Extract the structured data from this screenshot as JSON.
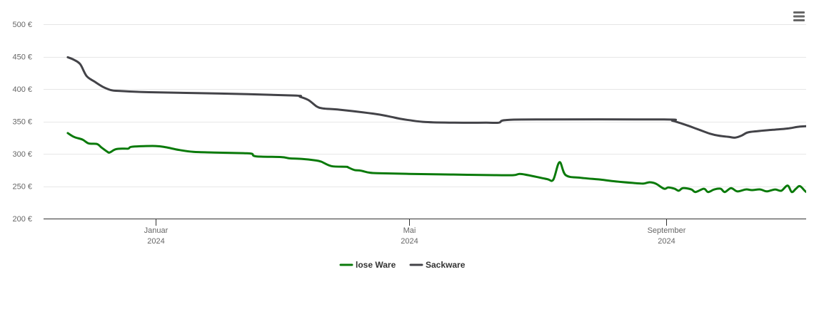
{
  "chart_data": {
    "type": "line",
    "title": "",
    "xlabel": "",
    "ylabel": "",
    "ylim": [
      200,
      500
    ],
    "xlim": [
      "2023-11-20",
      "2024-11-15"
    ],
    "y_ticks": [
      {
        "value": 500,
        "label": "500 €"
      },
      {
        "value": 450,
        "label": "450 €"
      },
      {
        "value": 400,
        "label": "400 €"
      },
      {
        "value": 350,
        "label": "350 €"
      },
      {
        "value": 300,
        "label": "300 €"
      },
      {
        "value": 250,
        "label": "250 €"
      },
      {
        "value": 200,
        "label": "200 €"
      }
    ],
    "x_ticks": [
      {
        "date": "2024-01-01",
        "label": "Januar",
        "sublabel": "2024"
      },
      {
        "date": "2024-05-01",
        "label": "Mai",
        "sublabel": "2024"
      },
      {
        "date": "2024-09-01",
        "label": "September",
        "sublabel": "2024"
      }
    ],
    "grid": true,
    "legend_position": "bottom-center",
    "series": [
      {
        "name": "lose Ware",
        "color": "#0a7a0a",
        "points": [
          [
            "2023-11-20",
            332
          ],
          [
            "2023-11-23",
            326
          ],
          [
            "2023-11-27",
            322
          ],
          [
            "2023-11-30",
            316
          ],
          [
            "2023-12-04",
            315
          ],
          [
            "2023-12-06",
            310
          ],
          [
            "2023-12-09",
            303
          ],
          [
            "2023-12-10",
            302
          ],
          [
            "2023-12-13",
            307
          ],
          [
            "2023-12-17",
            308
          ],
          [
            "2023-12-19",
            308
          ],
          [
            "2023-12-21",
            311
          ],
          [
            "2024-01-01",
            312
          ],
          [
            "2024-01-06",
            310
          ],
          [
            "2024-01-12",
            306
          ],
          [
            "2024-01-19",
            303
          ],
          [
            "2024-01-29",
            302
          ],
          [
            "2024-02-12",
            301
          ],
          [
            "2024-02-16",
            300
          ],
          [
            "2024-02-18",
            296
          ],
          [
            "2024-03-01",
            295
          ],
          [
            "2024-03-05",
            293
          ],
          [
            "2024-03-11",
            292
          ],
          [
            "2024-03-17",
            290
          ],
          [
            "2024-03-20",
            288
          ],
          [
            "2024-03-25",
            281
          ],
          [
            "2024-04-01",
            280
          ],
          [
            "2024-04-02",
            279
          ],
          [
            "2024-04-05",
            275
          ],
          [
            "2024-04-08",
            274
          ],
          [
            "2024-04-12",
            271
          ],
          [
            "2024-04-16",
            270
          ],
          [
            "2024-05-01",
            269
          ],
          [
            "2024-05-21",
            268
          ],
          [
            "2024-06-11",
            267
          ],
          [
            "2024-06-20",
            267
          ],
          [
            "2024-06-23",
            269
          ],
          [
            "2024-06-27",
            267
          ],
          [
            "2024-07-06",
            261
          ],
          [
            "2024-07-09",
            260
          ],
          [
            "2024-07-12",
            287
          ],
          [
            "2024-07-15",
            267
          ],
          [
            "2024-07-22",
            263
          ],
          [
            "2024-08-01",
            260
          ],
          [
            "2024-08-06",
            258
          ],
          [
            "2024-08-16",
            255
          ],
          [
            "2024-08-21",
            254
          ],
          [
            "2024-08-24",
            256
          ],
          [
            "2024-08-27",
            254
          ],
          [
            "2024-08-31",
            246
          ],
          [
            "2024-09-02",
            248
          ],
          [
            "2024-09-05",
            246
          ],
          [
            "2024-09-07",
            243
          ],
          [
            "2024-09-09",
            247
          ],
          [
            "2024-09-13",
            245
          ],
          [
            "2024-09-15",
            241
          ],
          [
            "2024-09-19",
            246
          ],
          [
            "2024-09-21",
            241
          ],
          [
            "2024-09-24",
            245
          ],
          [
            "2024-09-27",
            246
          ],
          [
            "2024-09-29",
            241
          ],
          [
            "2024-10-02",
            247
          ],
          [
            "2024-10-05",
            242
          ],
          [
            "2024-10-09",
            245
          ],
          [
            "2024-10-12",
            244
          ],
          [
            "2024-10-16",
            245
          ],
          [
            "2024-10-19",
            242
          ],
          [
            "2024-10-23",
            245
          ],
          [
            "2024-10-26",
            243
          ],
          [
            "2024-10-29",
            251
          ],
          [
            "2024-10-31",
            241
          ],
          [
            "2024-11-02",
            246
          ],
          [
            "2024-11-04",
            250
          ],
          [
            "2024-11-07",
            241
          ],
          [
            "2024-11-09",
            245
          ],
          [
            "2024-11-12",
            241
          ],
          [
            "2024-11-14",
            244
          ],
          [
            "2024-11-15",
            243
          ]
        ]
      },
      {
        "name": "Sackware",
        "color": "#434348",
        "points": [
          [
            "2023-11-20",
            449
          ],
          [
            "2023-11-23",
            445
          ],
          [
            "2023-11-26",
            438
          ],
          [
            "2023-11-29",
            420
          ],
          [
            "2023-12-03",
            411
          ],
          [
            "2023-12-07",
            403
          ],
          [
            "2023-12-11",
            398
          ],
          [
            "2023-12-15",
            397
          ],
          [
            "2023-12-29",
            395
          ],
          [
            "2024-02-01",
            393
          ],
          [
            "2024-03-07",
            390
          ],
          [
            "2024-03-10",
            388
          ],
          [
            "2024-03-14",
            383
          ],
          [
            "2024-03-18",
            373
          ],
          [
            "2024-03-21",
            370
          ],
          [
            "2024-03-29",
            368
          ],
          [
            "2024-04-14",
            362
          ],
          [
            "2024-04-21",
            358
          ],
          [
            "2024-04-27",
            354
          ],
          [
            "2024-05-01",
            352
          ],
          [
            "2024-05-09",
            349
          ],
          [
            "2024-05-23",
            348
          ],
          [
            "2024-06-07",
            348
          ],
          [
            "2024-06-13",
            348
          ],
          [
            "2024-06-16",
            352
          ],
          [
            "2024-07-01",
            353
          ],
          [
            "2024-08-31",
            353
          ],
          [
            "2024-09-04",
            351
          ],
          [
            "2024-09-10",
            345
          ],
          [
            "2024-09-16",
            338
          ],
          [
            "2024-09-22",
            331
          ],
          [
            "2024-09-26",
            328
          ],
          [
            "2024-10-01",
            326
          ],
          [
            "2024-10-04",
            325
          ],
          [
            "2024-10-07",
            328
          ],
          [
            "2024-10-10",
            333
          ],
          [
            "2024-10-15",
            335
          ],
          [
            "2024-10-22",
            337
          ],
          [
            "2024-10-29",
            339
          ],
          [
            "2024-11-04",
            342
          ],
          [
            "2024-11-11",
            343
          ],
          [
            "2024-11-16",
            342
          ],
          [
            "2024-11-22",
            341
          ],
          [
            "2024-11-27",
            339
          ],
          [
            "2024-11-29",
            337
          ],
          [
            "2024-12-03",
            333
          ]
        ]
      }
    ]
  },
  "ui": {
    "menu_icon": "hamburger-menu-icon"
  }
}
